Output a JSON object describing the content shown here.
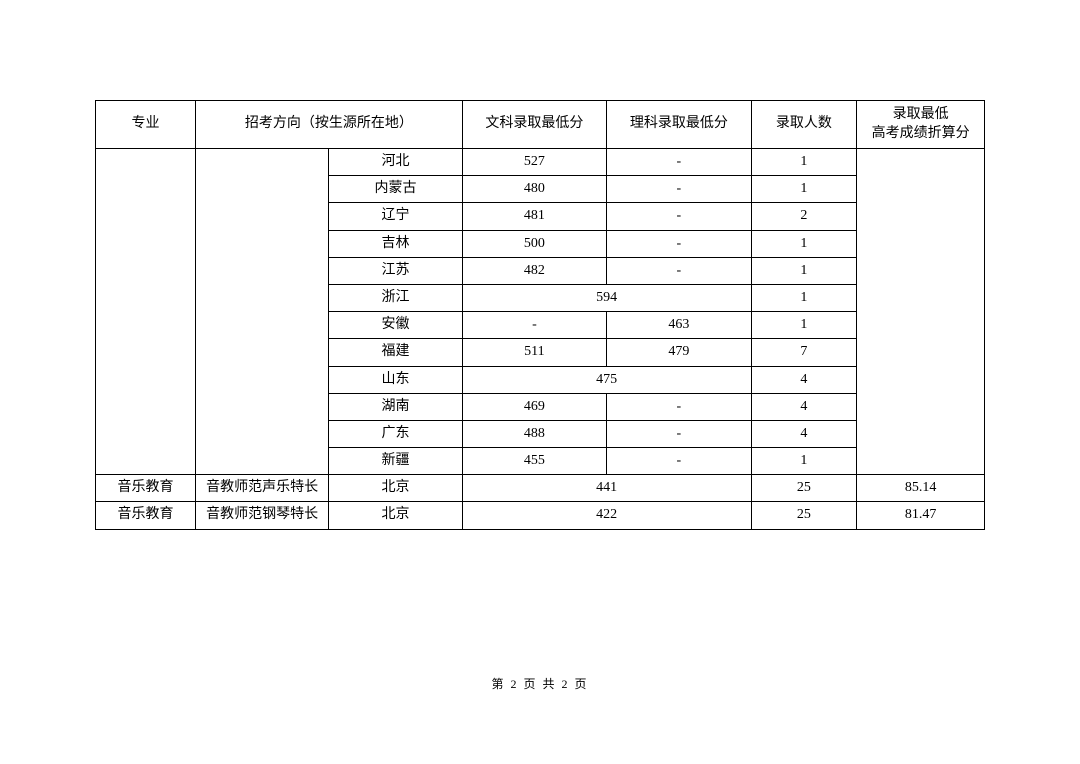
{
  "table": {
    "headers": {
      "major": "专业",
      "direction": "招考方向（按生源所在地）",
      "liberal_min": "文科录取最低分",
      "science_min": "理科录取最低分",
      "enroll_count": "录取人数",
      "converted_min_line1": "录取最低",
      "converted_min_line2": "高考成绩折算分"
    },
    "rows": [
      {
        "province": "河北",
        "liberal": "527",
        "science": "-",
        "count": "1",
        "merged": false
      },
      {
        "province": "内蒙古",
        "liberal": "480",
        "science": "-",
        "count": "1",
        "merged": false
      },
      {
        "province": "辽宁",
        "liberal": "481",
        "science": "-",
        "count": "2",
        "merged": false
      },
      {
        "province": "吉林",
        "liberal": "500",
        "science": "-",
        "count": "1",
        "merged": false
      },
      {
        "province": "江苏",
        "liberal": "482",
        "science": "-",
        "count": "1",
        "merged": false
      },
      {
        "province": "浙江",
        "combined": "594",
        "count": "1",
        "merged": true
      },
      {
        "province": "安徽",
        "liberal": "-",
        "science": "463",
        "count": "1",
        "merged": false
      },
      {
        "province": "福建",
        "liberal": "511",
        "science": "479",
        "count": "7",
        "merged": false
      },
      {
        "province": "山东",
        "combined": "475",
        "count": "4",
        "merged": true
      },
      {
        "province": "湖南",
        "liberal": "469",
        "science": "-",
        "count": "4",
        "merged": false
      },
      {
        "province": "广东",
        "liberal": "488",
        "science": "-",
        "count": "4",
        "merged": false
      },
      {
        "province": "新疆",
        "liberal": "455",
        "science": "-",
        "count": "1",
        "merged": false
      }
    ],
    "bottom_rows": [
      {
        "major": "音乐教育",
        "direction": "音教师范声乐特长",
        "province": "北京",
        "combined": "441",
        "count": "25",
        "converted": "85.14"
      },
      {
        "major": "音乐教育",
        "direction": "音教师范钢琴特长",
        "province": "北京",
        "combined": "422",
        "count": "25",
        "converted": "81.47"
      }
    ]
  },
  "footer": {
    "text": "第 2 页 共 2 页"
  },
  "style": {
    "background_color": "#ffffff",
    "border_color": "#000000",
    "text_color": "#000000",
    "font_family": "SimSun",
    "base_font_size": 14,
    "footer_font_size": 12,
    "column_widths": {
      "major": 90,
      "direction": 120,
      "province": 120,
      "liberal": 130,
      "science": 130,
      "enroll": 95,
      "converted": 115
    }
  }
}
